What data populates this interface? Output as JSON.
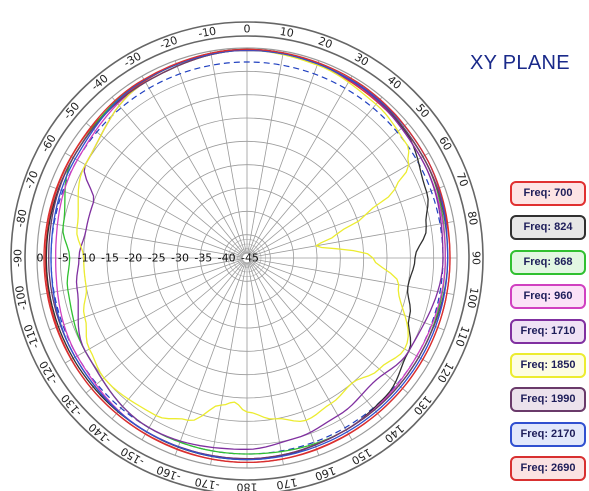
{
  "title": "XY PLANE",
  "legend": [
    {
      "label": "Freq: 700",
      "color": "#e03030",
      "fill": "#fde4e4"
    },
    {
      "label": "Freq: 824",
      "color": "#303030",
      "fill": "#e6e6e6"
    },
    {
      "label": "Freq: 868",
      "color": "#30c030",
      "fill": "#e2f7e2"
    },
    {
      "label": "Freq: 960",
      "color": "#d040c0",
      "fill": "#fbe2f7"
    },
    {
      "label": "Freq: 1710",
      "color": "#8030a0",
      "fill": "#efe2f5"
    },
    {
      "label": "Freq: 1850",
      "color": "#ecec30",
      "fill": "#fdfde2"
    },
    {
      "label": "Freq: 1990",
      "color": "#6a3a6a",
      "fill": "#ece2ec"
    },
    {
      "label": "Freq: 2170",
      "color": "#3050d0",
      "fill": "#e2e8fb"
    },
    {
      "label": "Freq: 2690",
      "color": "#d83030",
      "fill": "#fbe2e2"
    }
  ],
  "chart_data": {
    "type": "polar",
    "title": "XY PLANE",
    "angle_unit": "degrees",
    "angle_ticks": [
      "0",
      "10",
      "20",
      "30",
      "40",
      "50",
      "60",
      "70",
      "80",
      "90",
      "100",
      "110",
      "120",
      "130",
      "140",
      "150",
      "160",
      "170",
      "180",
      "-170",
      "-160",
      "-150",
      "-140",
      "-130",
      "-120",
      "-110",
      "-100",
      "-90",
      "-80",
      "-70",
      "-60",
      "-50",
      "-40",
      "-30",
      "-20",
      "-10"
    ],
    "radial_ticks": [
      "0",
      "-5",
      "-10",
      "-15",
      "-20",
      "-25",
      "-30",
      "-35",
      "-40",
      "-45"
    ],
    "r_range": [
      -45,
      0
    ],
    "reference_circle_db": -3,
    "series": [
      {
        "name": "Freq: 700",
        "color": "#e03030",
        "angles": [
          0,
          45,
          90,
          135,
          180,
          -135,
          -90,
          -45
        ],
        "values": [
          -0.3,
          -1.5,
          -1.5,
          -1.5,
          -1.2,
          -1.5,
          -1.8,
          -1.5
        ]
      },
      {
        "name": "Freq: 824",
        "color": "#303030",
        "angles": [
          0,
          30,
          50,
          70,
          80,
          90,
          100,
          110,
          120,
          135,
          150,
          180,
          -135,
          -90,
          -60,
          -30
        ],
        "values": [
          -0.3,
          -0.8,
          -1.5,
          -4,
          -6,
          -9,
          -10,
          -8,
          -5,
          -3,
          -2.5,
          -1.8,
          -2,
          -2,
          -2,
          -1
        ]
      },
      {
        "name": "Freq: 868",
        "color": "#30c030",
        "angles": [
          0,
          30,
          60,
          90,
          120,
          150,
          180,
          -150,
          -120,
          -100,
          -90,
          -80,
          -60,
          -30
        ],
        "values": [
          -0.5,
          -0.8,
          -1.5,
          -2.5,
          -2.5,
          -2.5,
          -3,
          -3,
          -5,
          -6,
          -7,
          -5,
          -2,
          -1
        ]
      },
      {
        "name": "Freq: 960",
        "color": "#d040c0",
        "angles": [
          0,
          30,
          60,
          90,
          120,
          150,
          180,
          -150,
          -120,
          -90,
          -60,
          -30
        ],
        "values": [
          -0.5,
          -1,
          -2,
          -2.5,
          -3,
          -2.5,
          -2,
          -2,
          -3,
          -4,
          -3,
          -1.5
        ]
      },
      {
        "name": "Freq: 1710",
        "color": "#8030a0",
        "angles": [
          0,
          30,
          60,
          90,
          120,
          135,
          150,
          165,
          180,
          -150,
          -120,
          -100,
          -90,
          -80,
          -70,
          -60,
          -30
        ],
        "values": [
          -0.5,
          -1,
          -2,
          -3,
          -5,
          -7,
          -6,
          -5,
          -4,
          -3,
          -5,
          -8,
          -9,
          -10,
          -10,
          -5,
          -1.5
        ]
      },
      {
        "name": "Freq: 1850",
        "color": "#ecec30",
        "angles": [
          0,
          20,
          40,
          55,
          60,
          65,
          70,
          75,
          80,
          90,
          100,
          120,
          130,
          140,
          150,
          160,
          170,
          180,
          -175,
          -170,
          -160,
          -150,
          -130,
          -120,
          -110,
          -100,
          -90,
          -80,
          -60,
          -30
        ],
        "values": [
          -0.5,
          -1,
          -2,
          -3,
          -5,
          -10,
          -18,
          -25,
          -30,
          -18,
          -12,
          -6,
          -8,
          -10,
          -9,
          -8,
          -10,
          -12,
          -14,
          -13,
          -8,
          -6,
          -5,
          -6,
          -8,
          -10,
          -10,
          -8,
          -5,
          -1.5
        ]
      },
      {
        "name": "Freq: 1990",
        "color": "#6a3a6a",
        "angles": [
          0,
          30,
          60,
          90,
          120,
          150,
          180,
          -150,
          -120,
          -90,
          -60,
          -30
        ],
        "values": [
          -0.5,
          -0.8,
          -1.5,
          -2,
          -2.5,
          -2.5,
          -2,
          -2,
          -2.5,
          -2.5,
          -2,
          -1.5
        ]
      },
      {
        "name": "Freq: 2170",
        "color": "#3050d0",
        "angles": [
          0,
          30,
          60,
          90,
          120,
          150,
          180,
          -150,
          -120,
          -90,
          -60,
          -30
        ],
        "values": [
          -0.5,
          -0.8,
          -1,
          -2,
          -2,
          -2,
          -1.8,
          -2,
          -2.5,
          -3,
          -2.5,
          -1
        ]
      },
      {
        "name": "Freq: 2690",
        "color": "#d83030",
        "angles": [
          0,
          30,
          60,
          90,
          120,
          150,
          180,
          -150,
          -120,
          -90,
          -60,
          -30
        ],
        "values": [
          -0.3,
          -0.5,
          -1,
          -1.5,
          -1.5,
          -1.5,
          -1.2,
          -1.5,
          -1.5,
          -1.5,
          -1.5,
          -0.8
        ]
      }
    ]
  }
}
